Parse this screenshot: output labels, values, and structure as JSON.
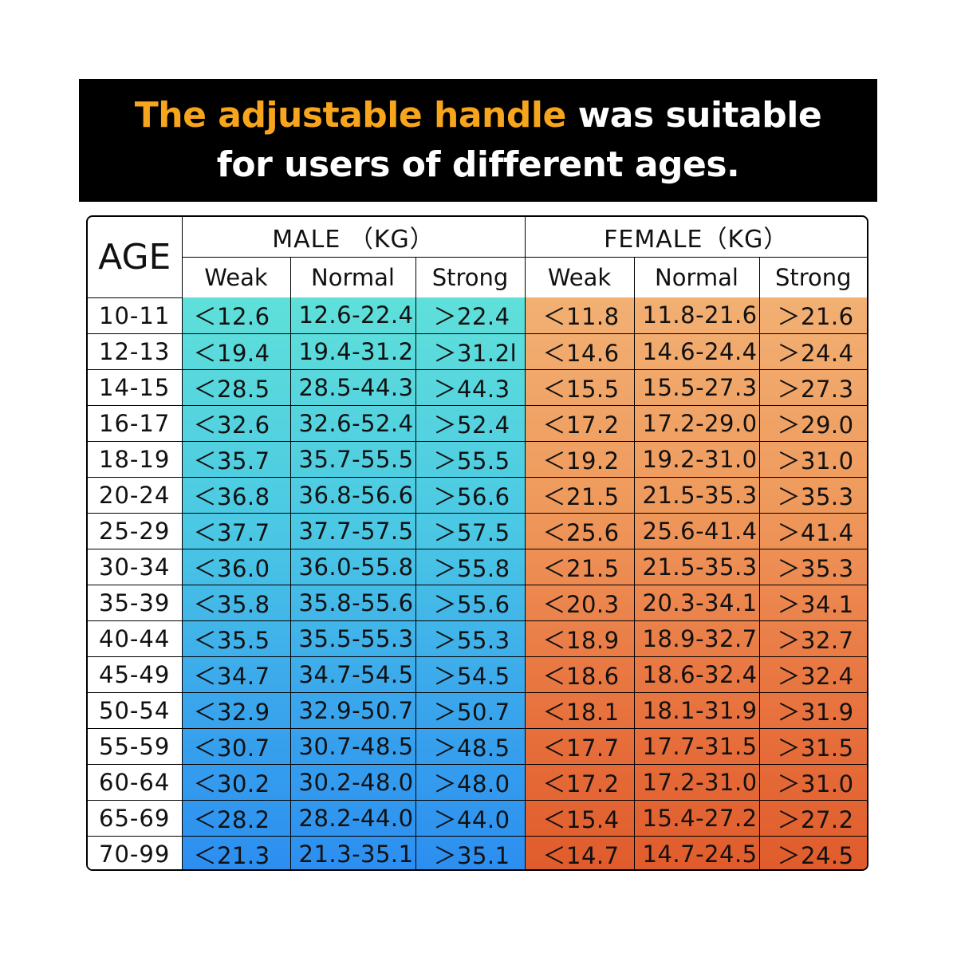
{
  "banner": {
    "highlight": "The adjustable handle",
    "rest": " was suitable",
    "line2": "for users of different ages."
  },
  "colors": {
    "highlight": "#f7a51c",
    "male_top": "#5fe0d9",
    "male_bottom": "#2c8ef0",
    "female_top": "#f2b073",
    "female_bottom": "#e05b2b"
  },
  "chart_data": {
    "type": "table",
    "age_header": "AGE",
    "groups": [
      "MALE （KG）",
      "FEMALE（KG）"
    ],
    "levels": [
      "Weak",
      "Normal",
      "Strong"
    ],
    "rows": [
      {
        "age": "10-11",
        "male": [
          "＜12.6",
          "12.6-22.4",
          "＞22.4"
        ],
        "female": [
          "＜11.8",
          "11.8-21.6",
          "＞21.6"
        ]
      },
      {
        "age": "12-13",
        "male": [
          "＜19.4",
          "19.4-31.2",
          "＞31.2l"
        ],
        "female": [
          "＜14.6",
          "14.6-24.4",
          "＞24.4"
        ]
      },
      {
        "age": "14-15",
        "male": [
          "＜28.5",
          "28.5-44.3",
          "＞44.3"
        ],
        "female": [
          "＜15.5",
          "15.5-27.3",
          "＞27.3"
        ]
      },
      {
        "age": "16-17",
        "male": [
          "＜32.6",
          "32.6-52.4",
          "＞52.4"
        ],
        "female": [
          "＜17.2",
          "17.2-29.0",
          "＞29.0"
        ]
      },
      {
        "age": "18-19",
        "male": [
          "＜35.7",
          "35.7-55.5",
          "＞55.5"
        ],
        "female": [
          "＜19.2",
          "19.2-31.0",
          "＞31.0"
        ]
      },
      {
        "age": "20-24",
        "male": [
          "＜36.8",
          "36.8-56.6",
          "＞56.6"
        ],
        "female": [
          "＜21.5",
          "21.5-35.3",
          "＞35.3"
        ]
      },
      {
        "age": "25-29",
        "male": [
          "＜37.7",
          "37.7-57.5",
          "＞57.5"
        ],
        "female": [
          "＜25.6",
          "25.6-41.4",
          "＞41.4"
        ]
      },
      {
        "age": "30-34",
        "male": [
          "＜36.0",
          "36.0-55.8",
          "＞55.8"
        ],
        "female": [
          "＜21.5",
          "21.5-35.3",
          "＞35.3"
        ]
      },
      {
        "age": "35-39",
        "male": [
          "＜35.8",
          "35.8-55.6",
          "＞55.6"
        ],
        "female": [
          "＜20.3",
          "20.3-34.1",
          "＞34.1"
        ]
      },
      {
        "age": "40-44",
        "male": [
          "＜35.5",
          "35.5-55.3",
          "＞55.3"
        ],
        "female": [
          "＜18.9",
          "18.9-32.7",
          "＞32.7"
        ]
      },
      {
        "age": "45-49",
        "male": [
          "＜34.7",
          "34.7-54.5",
          "＞54.5"
        ],
        "female": [
          "＜18.6",
          "18.6-32.4",
          "＞32.4"
        ]
      },
      {
        "age": "50-54",
        "male": [
          "＜32.9",
          "32.9-50.7",
          "＞50.7"
        ],
        "female": [
          "＜18.1",
          "18.1-31.9",
          "＞31.9"
        ]
      },
      {
        "age": "55-59",
        "male": [
          "＜30.7",
          "30.7-48.5",
          "＞48.5"
        ],
        "female": [
          "＜17.7",
          "17.7-31.5",
          "＞31.5"
        ]
      },
      {
        "age": "60-64",
        "male": [
          "＜30.2",
          "30.2-48.0",
          "＞48.0"
        ],
        "female": [
          "＜17.2",
          "17.2-31.0",
          "＞31.0"
        ]
      },
      {
        "age": "65-69",
        "male": [
          "＜28.2",
          "28.2-44.0",
          "＞44.0"
        ],
        "female": [
          "＜15.4",
          "15.4-27.2",
          "＞27.2"
        ]
      },
      {
        "age": "70-99",
        "male": [
          "＜21.3",
          "21.3-35.1",
          "＞35.1"
        ],
        "female": [
          "＜14.7",
          "14.7-24.5",
          "＞24.5"
        ]
      }
    ]
  }
}
